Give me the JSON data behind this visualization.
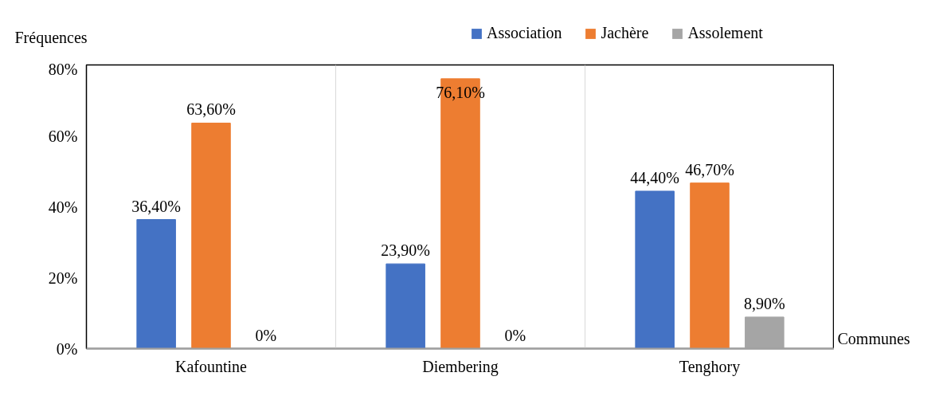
{
  "chart_data": {
    "type": "bar",
    "ylabel": "Fréquences",
    "xlabel": "Communes",
    "categories": [
      "Kafountine",
      "Diembering",
      "Tenghory"
    ],
    "series": [
      {
        "name": "Association",
        "color": "#4472c4",
        "values": [
          36.4,
          23.9,
          44.4
        ],
        "value_labels": [
          "36,40%",
          "23,90%",
          "44,40%"
        ]
      },
      {
        "name": "Jachère",
        "color": "#ed7d31",
        "values": [
          63.6,
          76.1,
          46.7
        ],
        "value_labels": [
          "63,60%",
          "76,10%",
          "46,70%"
        ]
      },
      {
        "name": "Assolement",
        "color": "#a5a5a5",
        "values": [
          0,
          0,
          8.9
        ],
        "value_labels": [
          "0%",
          "0%",
          "8,90%"
        ]
      }
    ],
    "ylim": [
      0,
      80
    ],
    "yticks": [
      {
        "value": 0,
        "label": "0%"
      },
      {
        "value": 20,
        "label": "20%"
      },
      {
        "value": 40,
        "label": "40%"
      },
      {
        "value": 60,
        "label": "60%"
      },
      {
        "value": 80,
        "label": "80%"
      }
    ],
    "grid": "x",
    "legend": "top right"
  }
}
